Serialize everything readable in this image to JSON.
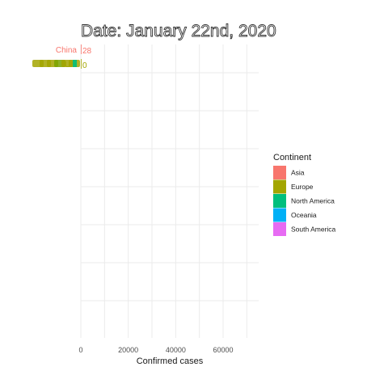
{
  "chart_data": {
    "type": "bar",
    "orientation": "horizontal",
    "title": "Date: January 22nd, 2020",
    "xlabel": "Confirmed cases",
    "ylabel": "",
    "xlim": [
      0,
      75000
    ],
    "x_ticks": [
      0,
      20000,
      40000,
      60000
    ],
    "x_tick_labels": [
      "0",
      "20000",
      "40000",
      "60000"
    ],
    "grid": true,
    "legend": {
      "title": "Continent",
      "placement": "right",
      "entries": [
        {
          "name": "Asia",
          "color": "#F8766D"
        },
        {
          "name": "Europe",
          "color": "#A3A500"
        },
        {
          "name": "North America",
          "color": "#00BF7D"
        },
        {
          "name": "Oceania",
          "color": "#00B0F6"
        },
        {
          "name": "South America",
          "color": "#E76BF3"
        }
      ]
    },
    "bars": [
      {
        "category": "China",
        "value": 28,
        "continent": "Asia",
        "value_label": "28"
      },
      {
        "category": "Uni",
        "value": 0,
        "continent": "Europe",
        "value_label": "0"
      }
    ]
  }
}
